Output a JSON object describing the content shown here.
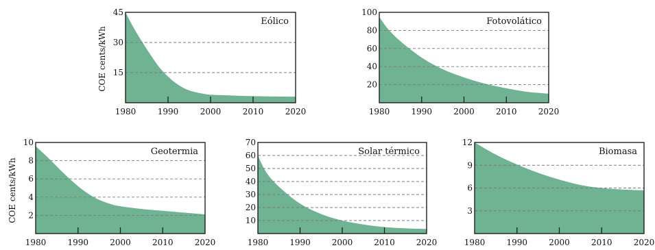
{
  "y_axis_label": "COE cents/kWh",
  "chart_data": [
    {
      "type": "area",
      "title": "Eólico",
      "x_ticks": [
        "1980",
        "1990",
        "2000",
        "2010",
        "2020"
      ],
      "y_ticks": [
        "15",
        "30",
        "45"
      ],
      "ylim": [
        0,
        45
      ],
      "xlim": [
        1980,
        2020
      ],
      "grid": true,
      "x": [
        1980,
        1982,
        1984,
        1986,
        1988,
        1990,
        1992,
        1994,
        1996,
        1998,
        2000,
        2005,
        2010,
        2015,
        2020
      ],
      "values": [
        45,
        37,
        30,
        23.5,
        17.5,
        13,
        9.5,
        7,
        5.5,
        4.6,
        4,
        3.6,
        3.3,
        3.1,
        3.0
      ]
    },
    {
      "type": "area",
      "title": "Fotovolático",
      "x_ticks": [
        "1980",
        "1990",
        "2000",
        "2010",
        "2020"
      ],
      "y_ticks": [
        "20",
        "40",
        "60",
        "80",
        "100"
      ],
      "ylim": [
        0,
        100
      ],
      "xlim": [
        1980,
        2020
      ],
      "grid": true,
      "x": [
        1980,
        1982,
        1985,
        1990,
        1995,
        2000,
        2005,
        2010,
        2015,
        2020
      ],
      "values": [
        95,
        82,
        68,
        50,
        37,
        28,
        21,
        16,
        12,
        10
      ]
    },
    {
      "type": "area",
      "title": "Geotermia",
      "x_ticks": [
        "1980",
        "1990",
        "2000",
        "2010",
        "2020"
      ],
      "y_ticks": [
        "2",
        "4",
        "6",
        "8",
        "10"
      ],
      "ylim": [
        0,
        10
      ],
      "xlim": [
        1980,
        2020
      ],
      "grid": true,
      "x": [
        1980,
        1983,
        1986,
        1989,
        1992,
        1995,
        1998,
        2000,
        2005,
        2010,
        2015,
        2020
      ],
      "values": [
        9.6,
        8.3,
        6.9,
        5.6,
        4.5,
        3.7,
        3.2,
        3.0,
        2.7,
        2.5,
        2.3,
        2.1
      ]
    },
    {
      "type": "area",
      "title": "Solar térmico",
      "x_ticks": [
        "1980",
        "1990",
        "2000",
        "2010",
        "2020"
      ],
      "y_ticks": [
        "10",
        "20",
        "30",
        "40",
        "50",
        "60",
        "70"
      ],
      "ylim": [
        0,
        70
      ],
      "xlim": [
        1980,
        2020
      ],
      "grid": true,
      "x": [
        1980,
        1982,
        1985,
        1990,
        1995,
        2000,
        2005,
        2010,
        2015,
        2020
      ],
      "values": [
        60,
        47,
        36,
        23,
        15,
        10,
        7,
        5,
        4,
        3.5
      ]
    },
    {
      "type": "area",
      "title": "Biomasa",
      "x_ticks": [
        "1980",
        "1990",
        "2000",
        "2010",
        "2020"
      ],
      "y_ticks": [
        "3",
        "6",
        "9",
        "12"
      ],
      "ylim": [
        0,
        12
      ],
      "xlim": [
        1980,
        2020
      ],
      "grid": true,
      "x": [
        1980,
        1985,
        1990,
        1995,
        2000,
        2005,
        2010,
        2015,
        2020
      ],
      "values": [
        12,
        10.4,
        9.1,
        8.0,
        7.1,
        6.4,
        6.0,
        5.8,
        5.7
      ]
    }
  ]
}
